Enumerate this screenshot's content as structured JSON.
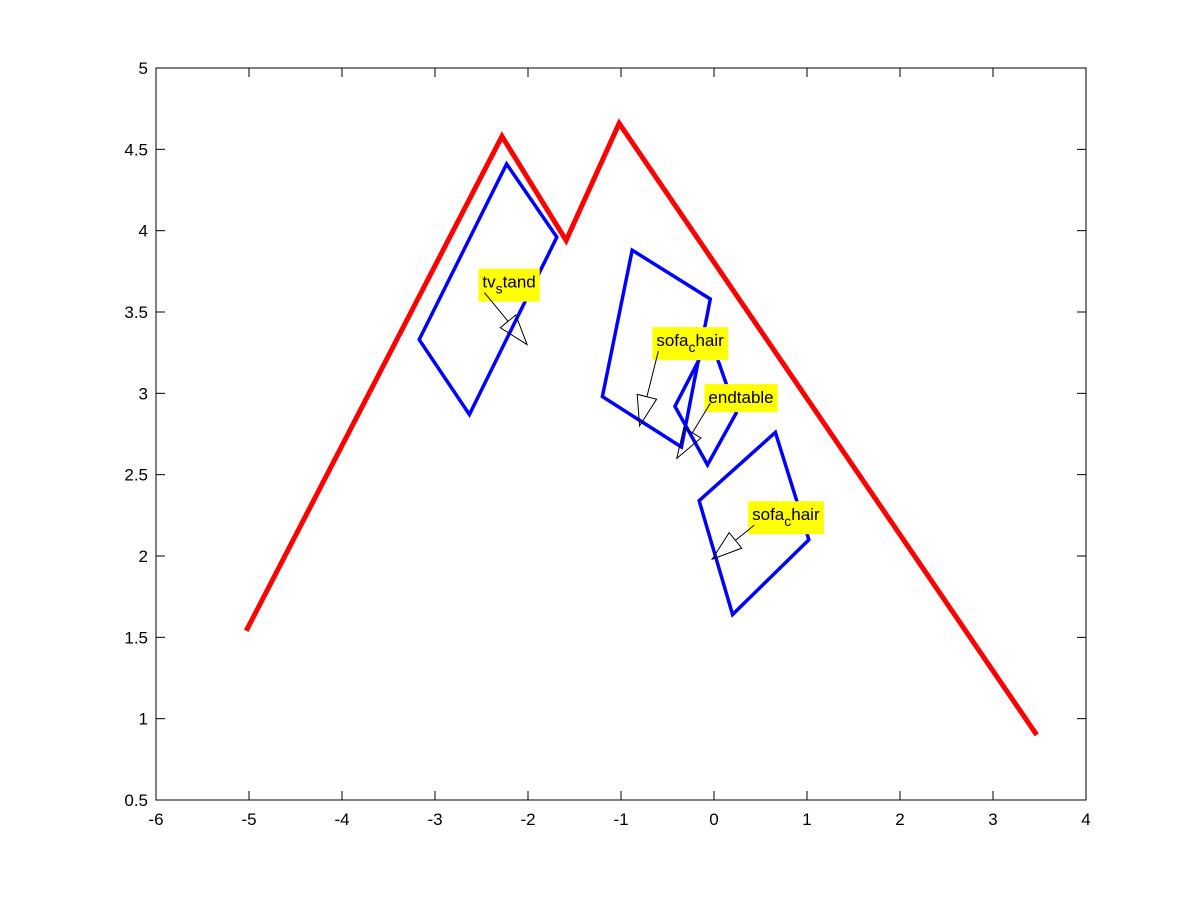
{
  "chart_data": {
    "type": "line",
    "title": "",
    "xlabel": "",
    "ylabel": "",
    "xlim": [
      -6,
      4
    ],
    "ylim": [
      0.5,
      5
    ],
    "x_ticks": [
      -6,
      -5,
      -4,
      -3,
      -2,
      -1,
      0,
      1,
      2,
      3,
      4
    ],
    "y_ticks": [
      0.5,
      1,
      1.5,
      2,
      2.5,
      3,
      3.5,
      4,
      4.5,
      5
    ],
    "x_tick_labels": [
      "-6",
      "-5",
      "-4",
      "-3",
      "-2",
      "-1",
      "0",
      "1",
      "2",
      "3",
      "4"
    ],
    "y_tick_labels": [
      "0.5",
      "1",
      "1.5",
      "2",
      "2.5",
      "3",
      "3.5",
      "4",
      "4.5",
      "5"
    ],
    "grid": false,
    "boundary": {
      "color": "#ff0000",
      "points": [
        [
          -5.03,
          1.54
        ],
        [
          -2.28,
          4.58
        ],
        [
          -1.59,
          3.94
        ],
        [
          -1.02,
          4.66
        ],
        [
          3.47,
          0.9
        ]
      ]
    },
    "shapes_color": "#0000ff",
    "shapes": [
      {
        "points": [
          [
            -2.23,
            4.41
          ],
          [
            -1.69,
            3.96
          ],
          [
            -2.63,
            2.87
          ],
          [
            -3.17,
            3.33
          ]
        ]
      },
      {
        "points": [
          [
            -0.88,
            3.88
          ],
          [
            -0.04,
            3.58
          ],
          [
            -0.35,
            2.67
          ],
          [
            -1.2,
            2.98
          ]
        ]
      },
      {
        "points": [
          [
            -0.04,
            3.34
          ],
          [
            0.24,
            2.88
          ],
          [
            -0.07,
            2.56
          ],
          [
            -0.42,
            2.92
          ]
        ]
      },
      {
        "points": [
          [
            0.66,
            2.76
          ],
          [
            1.02,
            2.1
          ],
          [
            0.2,
            1.64
          ],
          [
            -0.16,
            2.34
          ]
        ]
      }
    ],
    "annotation_color": "#ffff00",
    "annotations": [
      {
        "base": "tv",
        "sub": "s",
        "rest": "tand",
        "text_anchor": [
          -2.49,
          3.65
        ],
        "arrow_tip": [
          -2.01,
          3.3
        ]
      },
      {
        "base": "sofa",
        "sub": "c",
        "rest": "hair",
        "text_anchor": [
          -0.62,
          3.29
        ],
        "arrow_tip": [
          -0.8,
          2.8
        ]
      },
      {
        "base": "endtable",
        "sub": "",
        "rest": "",
        "text_anchor": [
          -0.06,
          2.94
        ],
        "arrow_tip": [
          -0.4,
          2.6
        ]
      },
      {
        "base": "sofa",
        "sub": "c",
        "rest": "hair",
        "text_anchor": [
          0.41,
          2.22
        ],
        "arrow_tip": [
          -0.02,
          1.98
        ]
      }
    ]
  }
}
